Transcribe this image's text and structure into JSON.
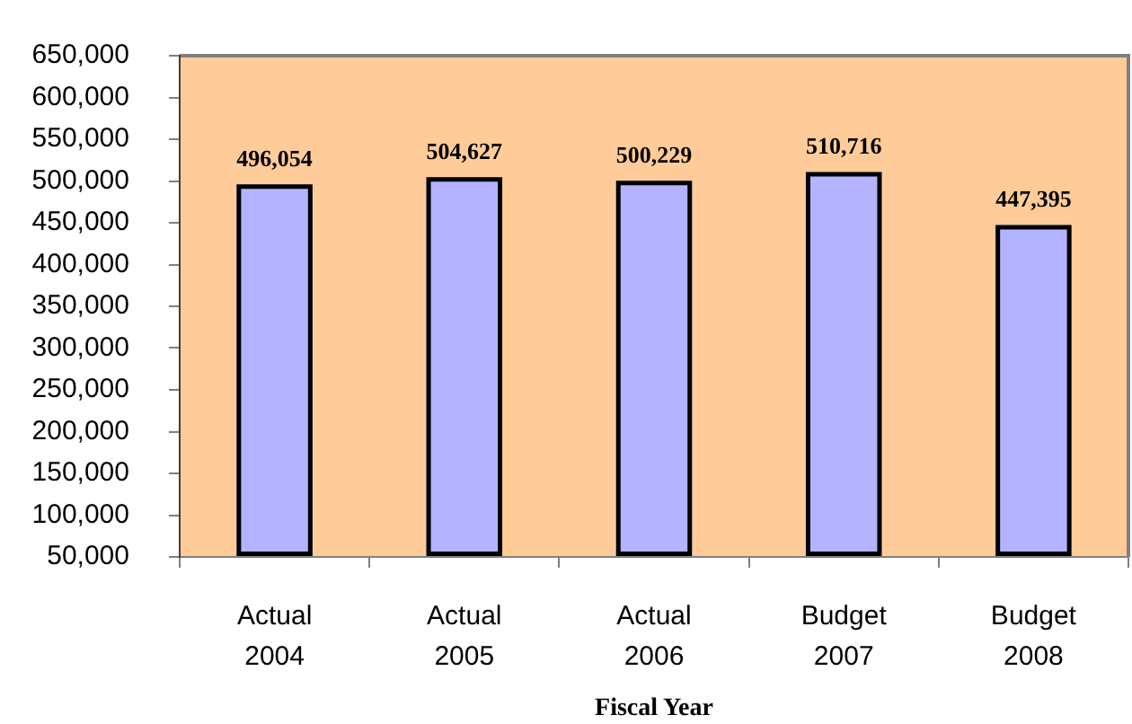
{
  "chart_data": {
    "type": "bar",
    "xlabel": "Fiscal Year",
    "categories": [
      "Actual 2004",
      "Actual 2005",
      "Actual 2006",
      "Budget 2007",
      "Budget 2008"
    ],
    "values": [
      496054,
      504627,
      500229,
      510716,
      447395
    ],
    "color": "#b3b3ff",
    "value_labels": [
      "496,054",
      "504,627",
      "500,229",
      "510,716",
      "447,395"
    ],
    "ylim": [
      50000,
      650000
    ],
    "yticks": [
      {
        "value": 50000,
        "label": "50,000"
      },
      {
        "value": 100000,
        "label": "100,000"
      },
      {
        "value": 150000,
        "label": "150,000"
      },
      {
        "value": 200000,
        "label": "200,000"
      },
      {
        "value": 250000,
        "label": "250,000"
      },
      {
        "value": 300000,
        "label": "300,000"
      },
      {
        "value": 350000,
        "label": "350,000"
      },
      {
        "value": 400000,
        "label": "400,000"
      },
      {
        "value": 450000,
        "label": "450,000"
      },
      {
        "value": 500000,
        "label": "500,000"
      },
      {
        "value": 550000,
        "label": "550,000"
      },
      {
        "value": 600000,
        "label": "600,000"
      },
      {
        "value": 650000,
        "label": "650,000"
      }
    ],
    "grid": false,
    "legend": false
  }
}
